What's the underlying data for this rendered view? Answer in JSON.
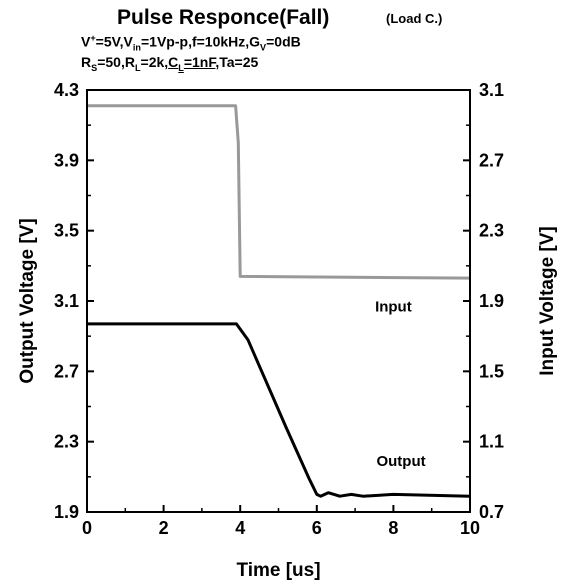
{
  "chart_data": {
    "type": "line",
    "title": "Pulse Responce(Fall)",
    "title_note": "(Load C.)",
    "conditions": {
      "line1": [
        {
          "t": "V"
        },
        {
          "t": "+",
          "sup": true
        },
        {
          "t": "=5V,V"
        },
        {
          "t": "in",
          "sub": true
        },
        {
          "t": "=1Vp-p,f=10kHz,G"
        },
        {
          "t": "V",
          "sub": true
        },
        {
          "t": "=0dB"
        }
      ],
      "line2": [
        {
          "t": "R"
        },
        {
          "t": "S",
          "sub": true
        },
        {
          "t": "=50,R"
        },
        {
          "t": "L",
          "sub": true
        },
        {
          "t": "=2k,"
        },
        {
          "t": "C",
          "u": true
        },
        {
          "t": "L",
          "sub": true,
          "u": true
        },
        {
          "t": "=1nF",
          "u": true
        },
        {
          "t": ",Ta=25"
        }
      ]
    },
    "xlabel": "Time [us]",
    "ylabel_left": "Output Voltage [V]",
    "ylabel_right": "Input Voltage [V]",
    "xlim": [
      0,
      10
    ],
    "ylim_left": [
      1.9,
      4.3
    ],
    "ylim_right": [
      0.7,
      3.1
    ],
    "x_ticks": [
      "0",
      "2",
      "4",
      "6",
      "8",
      "10"
    ],
    "y_ticks_left": [
      "1.9",
      "2.3",
      "2.7",
      "3.1",
      "3.5",
      "3.9",
      "4.3"
    ],
    "y_ticks_right": [
      "0.7",
      "1.1",
      "1.5",
      "1.9",
      "2.3",
      "2.7",
      "3.1"
    ],
    "grid": false,
    "series": [
      {
        "name": "Input",
        "axis": "right",
        "color": "#999999",
        "x": [
          0,
          3.88,
          3.95,
          4.0,
          10
        ],
        "y": [
          3.01,
          3.01,
          2.8,
          2.04,
          2.03
        ]
      },
      {
        "name": "Output",
        "axis": "left",
        "color": "#000000",
        "x": [
          0,
          3.9,
          4.2,
          4.6,
          5.2,
          5.8,
          6.0,
          6.1,
          6.3,
          6.6,
          6.9,
          7.2,
          8,
          10
        ],
        "y": [
          2.97,
          2.97,
          2.88,
          2.68,
          2.38,
          2.09,
          2.0,
          1.99,
          2.01,
          1.99,
          2.0,
          1.99,
          2.0,
          1.99
        ]
      }
    ],
    "annotations": [
      {
        "text": "Input",
        "x": 8.0,
        "y": 1.87,
        "axis": "right"
      },
      {
        "text": "Output",
        "x": 8.2,
        "y": 2.19,
        "axis": "left"
      }
    ]
  }
}
